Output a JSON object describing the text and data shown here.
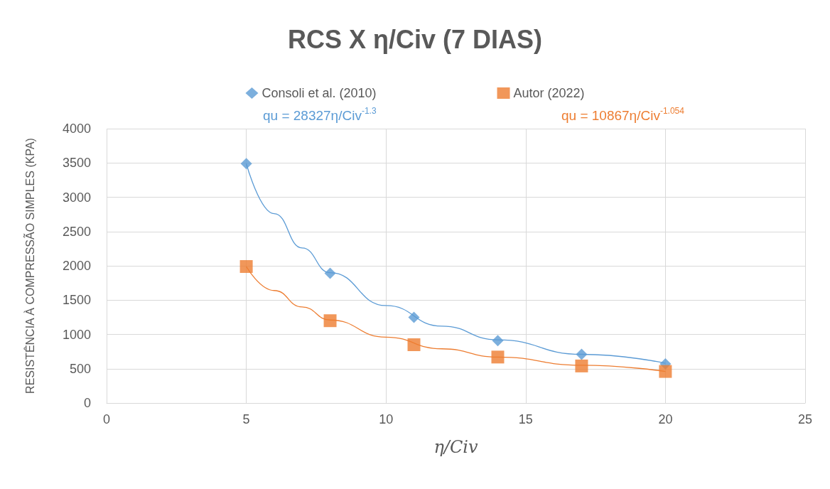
{
  "chart_data": {
    "type": "scatter",
    "title": "RCS X η/Civ (7 DIAS)",
    "xlabel": "η/Civ",
    "ylabel": "RESISTÊNCIA À COMPRESSÃO SIMPLES (KPA)",
    "annotations": [
      "qu = 28327η/Civ$^{-1.3}$",
      "qu = 10867η/Civ$^{-1.054}$"
    ],
    "series": [
      {
        "name": "Consoli et al. (2010)",
        "color": "#5b9bd5",
        "marker": "diamond",
        "x": [
          5,
          8,
          11,
          14,
          17,
          20
        ],
        "values": [
          3490,
          1890,
          1250,
          910,
          710,
          570
        ]
      },
      {
        "name": "Autor (2022)",
        "color": "#ed7d31",
        "marker": "square",
        "x": [
          5,
          8,
          11,
          14,
          17,
          20
        ],
        "values": [
          1990,
          1200,
          850,
          670,
          540,
          460
        ]
      },
      {
        "type": "line",
        "color": "#5b9bd5",
        "marker": "none",
        "x": [
          5,
          6,
          7,
          8,
          10,
          12,
          14,
          17,
          20
        ],
        "values": [
          3490,
          2760,
          2260,
          1900,
          1420,
          1120,
          920,
          710,
          580
        ]
      },
      {
        "type": "line",
        "color": "#ed7d31",
        "marker": "none",
        "x": [
          5,
          6,
          7,
          8,
          10,
          12,
          14,
          17,
          20
        ],
        "values": [
          1990,
          1640,
          1400,
          1210,
          960,
          790,
          670,
          550,
          460
        ]
      }
    ],
    "xlim": [
      0,
      25
    ],
    "xticks": [
      0,
      5,
      10,
      15,
      20,
      25
    ],
    "ylim": [
      0,
      4000
    ],
    "yticks": [
      0,
      500,
      1000,
      1500,
      2000,
      2500,
      3000,
      3500,
      4000
    ],
    "grid": true,
    "legend": "top",
    "line_style": "solid"
  }
}
